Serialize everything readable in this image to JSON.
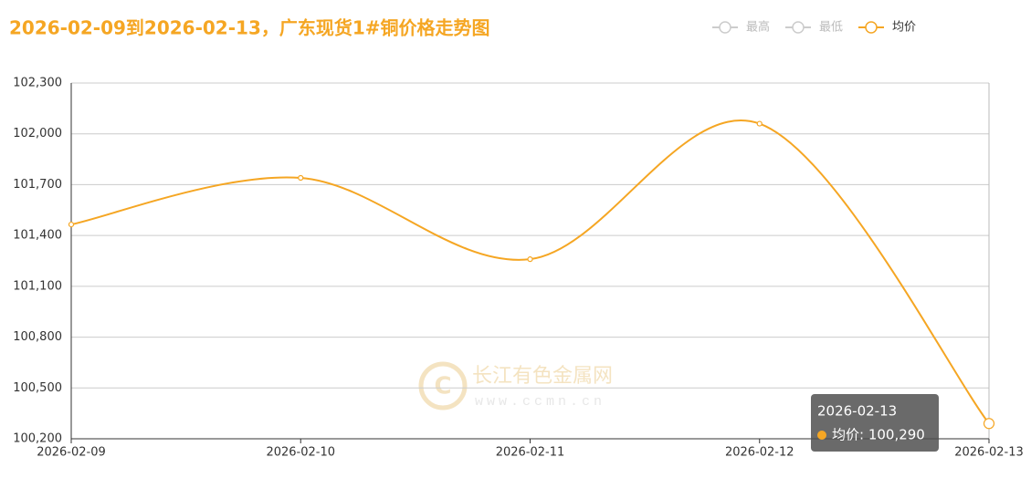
{
  "chart_data": {
    "type": "line",
    "title": "2026-02-09到2026-02-13，广东现货1#铜价格走势图",
    "categories": [
      "2026-02-09",
      "2026-02-10",
      "2026-02-11",
      "2026-02-12",
      "2026-02-13"
    ],
    "series": [
      {
        "name": "均价",
        "color": "#f5a623",
        "values": [
          101465,
          101740,
          101260,
          102060,
          100290
        ]
      }
    ],
    "legend_items": [
      {
        "name": "最高",
        "active": false
      },
      {
        "name": "最低",
        "active": false
      },
      {
        "name": "均价",
        "active": true
      }
    ],
    "ylim": [
      100200,
      102300
    ],
    "yticks": [
      {
        "value": 100200,
        "label": "100,200"
      },
      {
        "value": 100500,
        "label": "100,500"
      },
      {
        "value": 100800,
        "label": "100,800"
      },
      {
        "value": 101100,
        "label": "101,100"
      },
      {
        "value": 101400,
        "label": "101,400"
      },
      {
        "value": 101700,
        "label": "101,700"
      },
      {
        "value": 102000,
        "label": "102,000"
      },
      {
        "value": 102300,
        "label": "102,300"
      }
    ],
    "grid": true,
    "smooth": true,
    "tooltip": {
      "title": "2026-02-13",
      "text": "均价: 100,290"
    },
    "watermark": {
      "name": "长江有色金属网",
      "url": "www.ccmn.cn"
    }
  }
}
